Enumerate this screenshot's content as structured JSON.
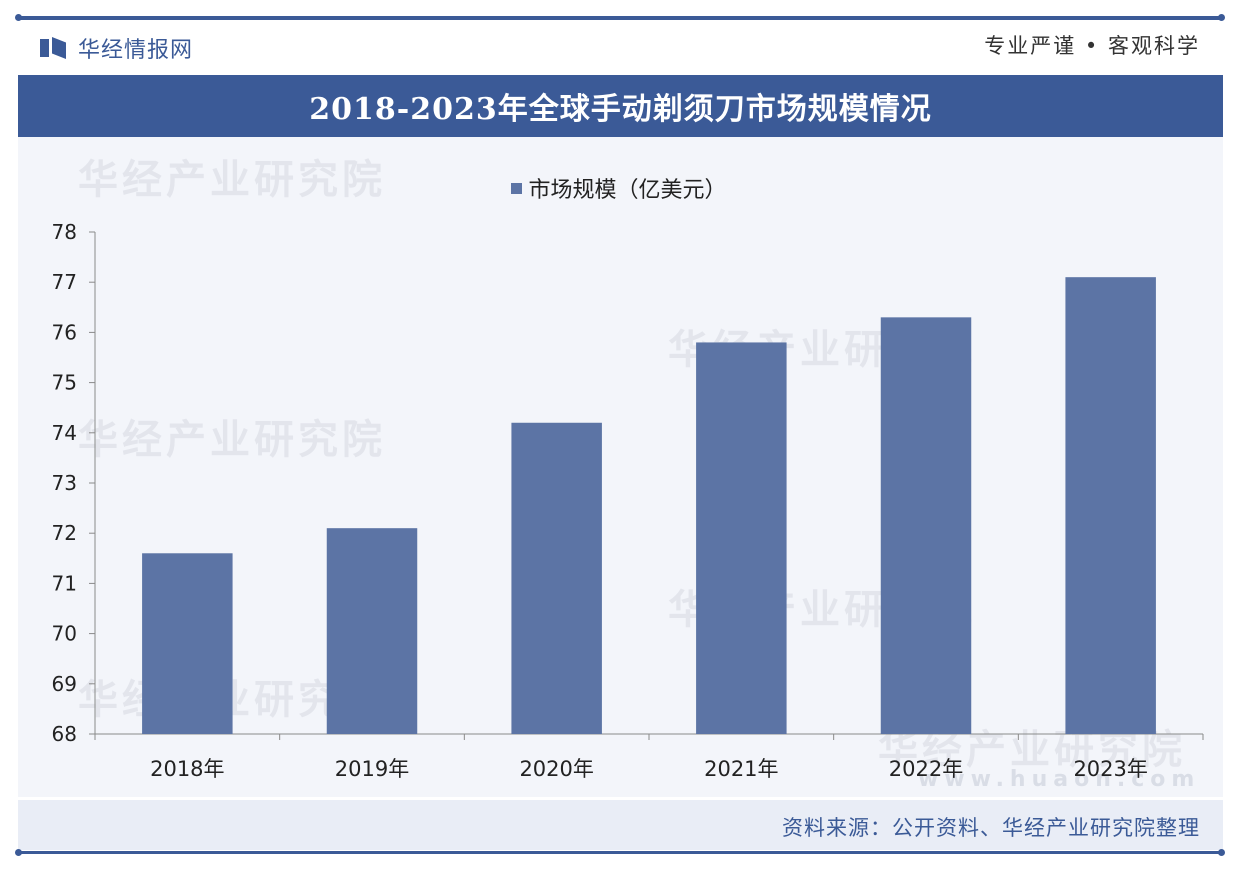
{
  "header": {
    "logo_text": "华经情报网",
    "slogan": "专业严谨 • 客观科学"
  },
  "watermark": {
    "text": "华经产业研究院",
    "url": "www.huaon.com"
  },
  "footer": {
    "source": "资料来源：公开资料、华经产业研究院整理"
  },
  "colors": {
    "brand": "#3b5a97",
    "bar": "#5c74a5"
  },
  "chart_data": {
    "type": "bar",
    "title": "2018-2023年全球手动剃须刀市场规模情况",
    "categories": [
      "2018年",
      "2019年",
      "2020年",
      "2021年",
      "2022年",
      "2023年"
    ],
    "series": [
      {
        "name": "市场规模（亿美元）",
        "values": [
          71.6,
          72.1,
          74.2,
          75.8,
          76.3,
          77.1
        ]
      }
    ],
    "ylim": [
      68,
      78
    ],
    "yticks": [
      68,
      69,
      70,
      71,
      72,
      73,
      74,
      75,
      76,
      77,
      78
    ],
    "xlabel": "",
    "ylabel": "",
    "grid": false,
    "legend": "top-center"
  }
}
